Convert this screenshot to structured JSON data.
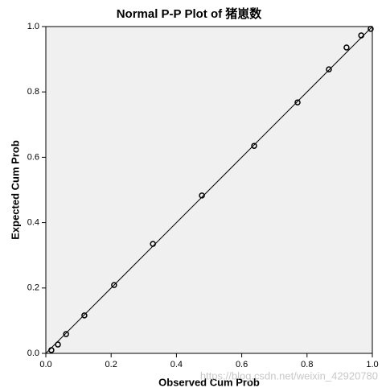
{
  "chart_data": {
    "type": "scatter",
    "title": "Normal P-P Plot of 猪崽数",
    "x_label": "Observed Cum Prob",
    "y_label": "Expected Cum Prob",
    "x": [
      0.017,
      0.037,
      0.062,
      0.118,
      0.209,
      0.328,
      0.478,
      0.638,
      0.771,
      0.867,
      0.921,
      0.966,
      0.995
    ],
    "values": [
      0.01,
      0.027,
      0.059,
      0.116,
      0.209,
      0.335,
      0.483,
      0.635,
      0.768,
      0.869,
      0.936,
      0.973,
      0.993
    ],
    "color": "#000000",
    "background": "#f0f0f0",
    "reference_line": true,
    "xlim": [
      0,
      1
    ],
    "ylim": [
      0,
      1
    ],
    "xticks": [
      {
        "value": 0,
        "label": "0.0"
      },
      0.2,
      0.4,
      0.6,
      0.8,
      {
        "value": 1,
        "label": "1.0"
      }
    ],
    "yticks": [
      {
        "value": 0,
        "label": "0.0"
      },
      0.2,
      0.4,
      0.6,
      0.8,
      {
        "value": 1,
        "label": "1.0"
      }
    ],
    "grid": false
  },
  "watermark": "https://blog.csdn.net/weixin_42920780"
}
